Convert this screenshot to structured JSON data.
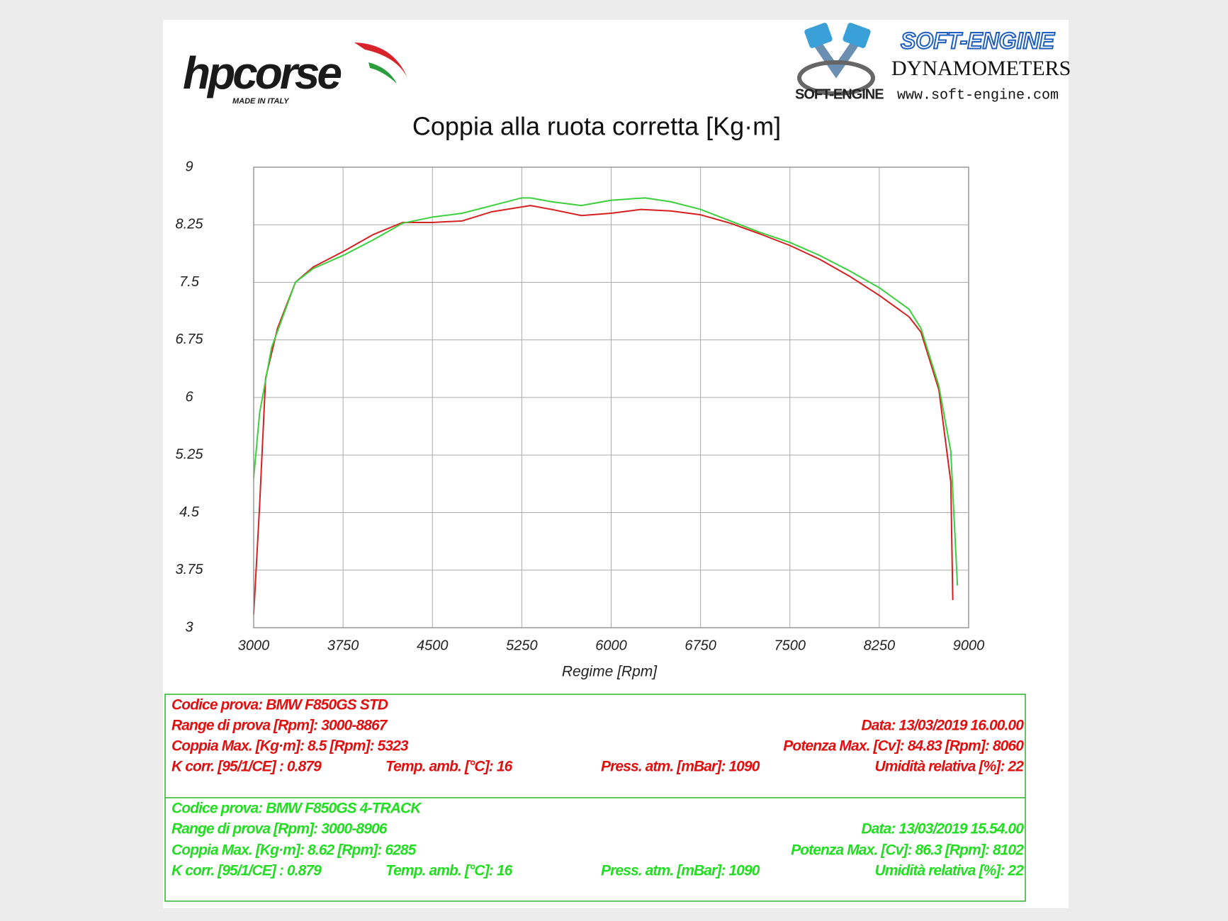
{
  "header": {
    "brand_left": "hpcorse",
    "brand_left_tag": "MADE IN ITALY",
    "brand_right": "SOFT-ENGINE",
    "brand_right_sub": "DYNAMOMETERS",
    "brand_right_mark": "SOFT-ENGINE",
    "brand_right_url": "www.soft-engine.com"
  },
  "chart_data": {
    "type": "line",
    "title": "Coppia alla ruota corretta [Kg·m]",
    "x_label": "Regime [Rpm]",
    "xlim": [
      3000,
      9000
    ],
    "xticks": [
      3000,
      3750,
      4500,
      5250,
      6000,
      6750,
      7500,
      8250,
      9000
    ],
    "ylim": [
      3,
      9
    ],
    "yticks": [
      3,
      3.75,
      4.5,
      5.25,
      6,
      6.75,
      7.5,
      8.25,
      9
    ],
    "grid": true,
    "series": [
      {
        "color": "#d42020",
        "x": [
          3000,
          3050,
          3100,
          3200,
          3350,
          3500,
          3750,
          4000,
          4250,
          4500,
          4750,
          5000,
          5323,
          5500,
          5750,
          6000,
          6250,
          6500,
          6750,
          7000,
          7250,
          7500,
          7750,
          8000,
          8250,
          8500,
          8600,
          8750,
          8800,
          8850,
          8867
        ],
        "values": [
          3.17,
          4.6,
          6.25,
          6.9,
          7.5,
          7.7,
          7.9,
          8.12,
          8.28,
          8.28,
          8.3,
          8.42,
          8.5,
          8.45,
          8.37,
          8.4,
          8.45,
          8.43,
          8.38,
          8.27,
          8.13,
          7.98,
          7.8,
          7.58,
          7.33,
          7.05,
          6.85,
          6.1,
          5.5,
          4.9,
          3.36
        ]
      },
      {
        "color": "#3ccf3c",
        "x": [
          3000,
          3050,
          3150,
          3350,
          3500,
          3750,
          4000,
          4250,
          4500,
          4750,
          5000,
          5250,
          5323,
          5500,
          5750,
          6000,
          6285,
          6500,
          6750,
          7000,
          7250,
          7500,
          7750,
          8000,
          8250,
          8500,
          8600,
          8750,
          8850,
          8906
        ],
        "values": [
          4.95,
          5.8,
          6.65,
          7.5,
          7.68,
          7.85,
          8.05,
          8.27,
          8.35,
          8.4,
          8.5,
          8.6,
          8.6,
          8.55,
          8.5,
          8.57,
          8.6,
          8.55,
          8.45,
          8.3,
          8.15,
          8.02,
          7.85,
          7.65,
          7.43,
          7.15,
          6.9,
          6.15,
          5.3,
          3.55
        ]
      }
    ]
  },
  "tests": [
    {
      "code": "Codice prova: BMW F850GS STD",
      "range": "Range di prova [Rpm]: 3000-8867",
      "date": "Data: 13/03/2019  16.00.00",
      "torque": "Coppia Max. [Kg·m]: 8.5  [Rpm]: 5323",
      "power": "Potenza Max. [Cv]: 84.83  [Rpm]: 8060",
      "kcorr": "K corr. [95/1/CE] : 0.879",
      "temp": "Temp. amb. [°C]: 16",
      "press": "Press. atm. [mBar]: 1090",
      "humidity": "Umidità relativa [%]: 22"
    },
    {
      "code": "Codice prova: BMW F850GS 4-TRACK",
      "range": "Range di prova [Rpm]: 3000-8906",
      "date": "Data: 13/03/2019  15.54.00",
      "torque": "Coppia Max. [Kg·m]: 8.62  [Rpm]: 6285",
      "power": "Potenza Max. [Cv]: 86.3  [Rpm]: 8102",
      "kcorr": "K corr. [95/1/CE] : 0.879",
      "temp": "Temp. amb. [°C]: 16",
      "press": "Press. atm. [mBar]: 1090",
      "humidity": "Umidità relativa [%]: 22"
    }
  ]
}
